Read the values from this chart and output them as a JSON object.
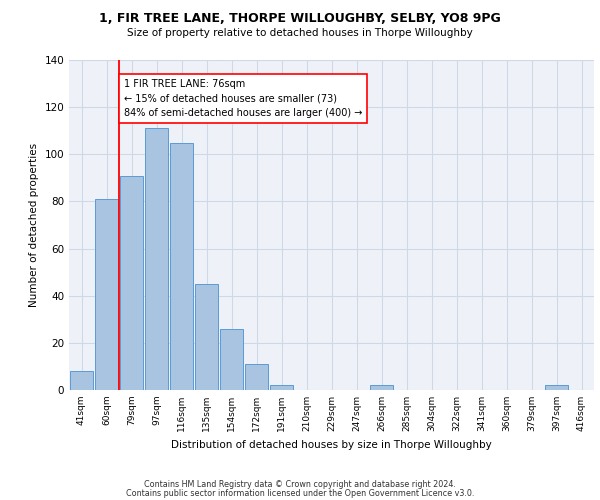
{
  "title": "1, FIR TREE LANE, THORPE WILLOUGHBY, SELBY, YO8 9PG",
  "subtitle": "Size of property relative to detached houses in Thorpe Willoughby",
  "xlabel": "Distribution of detached houses by size in Thorpe Willoughby",
  "ylabel": "Number of detached properties",
  "bin_labels": [
    "41sqm",
    "60sqm",
    "79sqm",
    "97sqm",
    "116sqm",
    "135sqm",
    "154sqm",
    "172sqm",
    "191sqm",
    "210sqm",
    "229sqm",
    "247sqm",
    "266sqm",
    "285sqm",
    "304sqm",
    "322sqm",
    "341sqm",
    "360sqm",
    "379sqm",
    "397sqm",
    "416sqm"
  ],
  "bar_values": [
    8,
    81,
    91,
    111,
    105,
    45,
    26,
    11,
    2,
    0,
    0,
    0,
    2,
    0,
    0,
    0,
    0,
    0,
    0,
    2,
    0
  ],
  "bar_color": "#a8c4e0",
  "bar_edge_color": "#5b9bd5",
  "grid_color": "#d0d8e8",
  "background_color": "#eef2f8",
  "annotation_text": "1 FIR TREE LANE: 76sqm\n← 15% of detached houses are smaller (73)\n84% of semi-detached houses are larger (400) →",
  "annotation_box_color": "white",
  "annotation_line_color": "red",
  "ylim": [
    0,
    140
  ],
  "yticks": [
    0,
    20,
    40,
    60,
    80,
    100,
    120,
    140
  ],
  "footer_line1": "Contains HM Land Registry data © Crown copyright and database right 2024.",
  "footer_line2": "Contains public sector information licensed under the Open Government Licence v3.0."
}
